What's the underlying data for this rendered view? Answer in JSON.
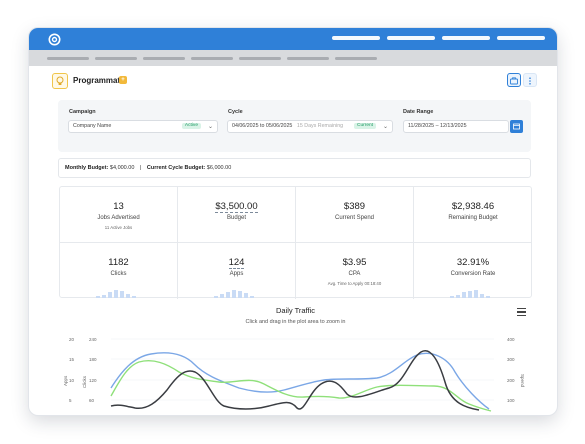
{
  "header": {
    "title": "Programmatic"
  },
  "filters": {
    "campaign_label": "Campaign",
    "campaign_value": "Company Name",
    "campaign_status": "Active",
    "cycle_label": "Cycle",
    "cycle_value": "04/06/2025 to 05/06/2025",
    "cycle_remaining": "15 Days Remaining",
    "cycle_status": "Current",
    "date_label": "Date Range",
    "date_value": "11/28/2025 – 12/13/2025"
  },
  "budget": {
    "monthly_label": "Monthly Budget:",
    "monthly_value": "$4,000.00",
    "separator": "|",
    "cycle_label": "Current Cycle Budget:",
    "cycle_value": "$6,000.00"
  },
  "stats": [
    {
      "value": "13",
      "label": "Jobs Advertised",
      "sub": "11 Active Jobs"
    },
    {
      "value": "$3,500.00",
      "label": "Budget",
      "sub": ""
    },
    {
      "value": "$389",
      "label": "Current Spend",
      "sub": ""
    },
    {
      "value": "$2,938.46",
      "label": "Remaining Budget",
      "sub": ""
    },
    {
      "value": "1182",
      "label": "Clicks",
      "sub": ""
    },
    {
      "value": "124",
      "label": "Apps",
      "sub": ""
    },
    {
      "value": "$3.95",
      "label": "CPA",
      "sub": "Avg. Time to Apply 00:18:40"
    },
    {
      "value": "32.91%",
      "label": "Conversion Rate",
      "sub": ""
    }
  ],
  "chart": {
    "title": "Daily Traffic",
    "subtitle": "Click and drag in the plot area to zoom in",
    "left_axis_label": "Apps",
    "inner_axis_label": "Clicks",
    "right_axis_label": "Spend",
    "left_ticks": [
      "20",
      "15",
      "10",
      "5"
    ],
    "inner_ticks": [
      "240",
      "180",
      "120",
      "60"
    ],
    "right_ticks": [
      "400",
      "300",
      "200",
      "100"
    ]
  },
  "colors": {
    "accent": "#2f80d8",
    "clicks_line": "#7ba7e6",
    "apps_line": "#8fe07a",
    "spend_line": "#3a3d42"
  }
}
